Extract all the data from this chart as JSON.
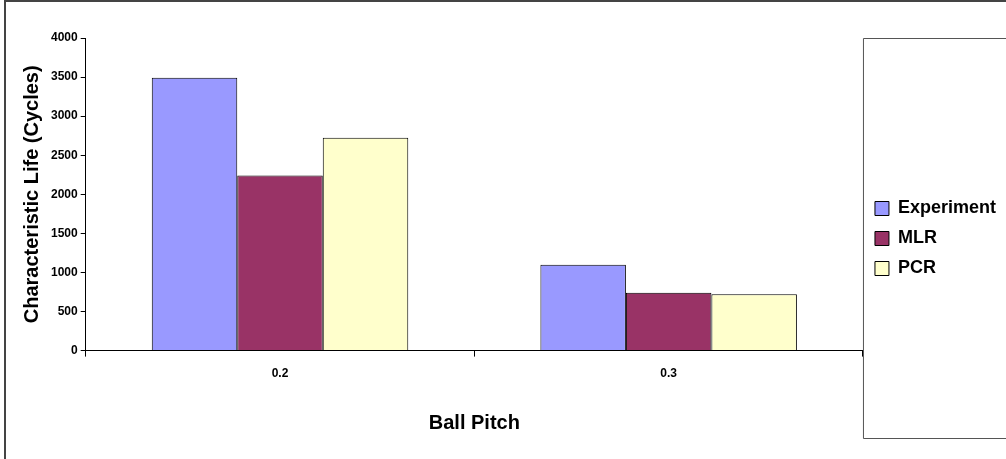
{
  "chart_data": {
    "type": "bar",
    "xlabel": "Ball Pitch",
    "ylabel": "Characteristic Life (Cycles)",
    "categories": [
      "0.2",
      "0.3"
    ],
    "series": [
      {
        "name": "Experiment",
        "color": "#9999ff",
        "values": [
          3490,
          1100
        ]
      },
      {
        "name": "MLR",
        "color": "#993366",
        "values": [
          2240,
          740
        ]
      },
      {
        "name": "PCR",
        "color": "#ffffcc",
        "values": [
          2725,
          720
        ]
      }
    ],
    "ylim": [
      0,
      4000
    ],
    "yticks": [
      0,
      500,
      1000,
      1500,
      2000,
      2500,
      3000,
      3500,
      4000
    ],
    "grid": false,
    "legend": "right"
  }
}
